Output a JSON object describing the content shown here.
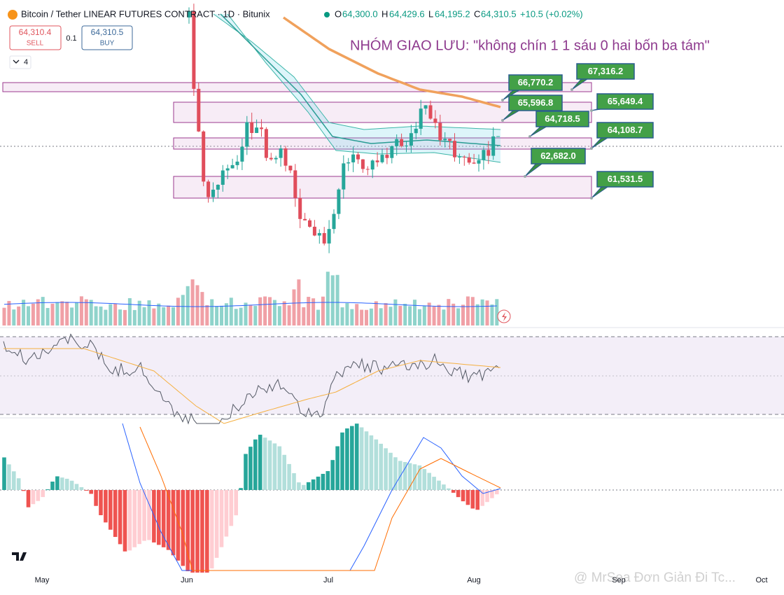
{
  "header": {
    "symbol": "Bitcoin / Tether LINEAR FUTURES CONTRACT · 1D · Bitunix",
    "open": {
      "label": "O",
      "value": "64,300.0"
    },
    "high": {
      "label": "H",
      "value": "64,429.6"
    },
    "low": {
      "label": "L",
      "value": "64,195.2"
    },
    "close": {
      "label": "C",
      "value": "64,310.5"
    },
    "change": "+10.5 (+0.02%)"
  },
  "trade": {
    "sell_price": "64,310.4",
    "sell": "SELL",
    "spread": "0.1",
    "buy_price": "64,310.5",
    "buy": "BUY"
  },
  "indicators_count": "4",
  "annotation": "NHÓM GIAO LƯU: \"không chín 1 1 sáu 0 hai bốn ba tám\"",
  "price_labels": [
    "67,316.2",
    "66,770.2",
    "65,649.4",
    "65,596.8",
    "64,718.5",
    "64,108.7",
    "62,682.0",
    "61,531.5"
  ],
  "x_axis": [
    "May",
    "Jun",
    "Jul",
    "Aug",
    "Sep",
    "Oct"
  ],
  "watermark": "@ MrSea Đơn Giản Đi Tc..."
}
